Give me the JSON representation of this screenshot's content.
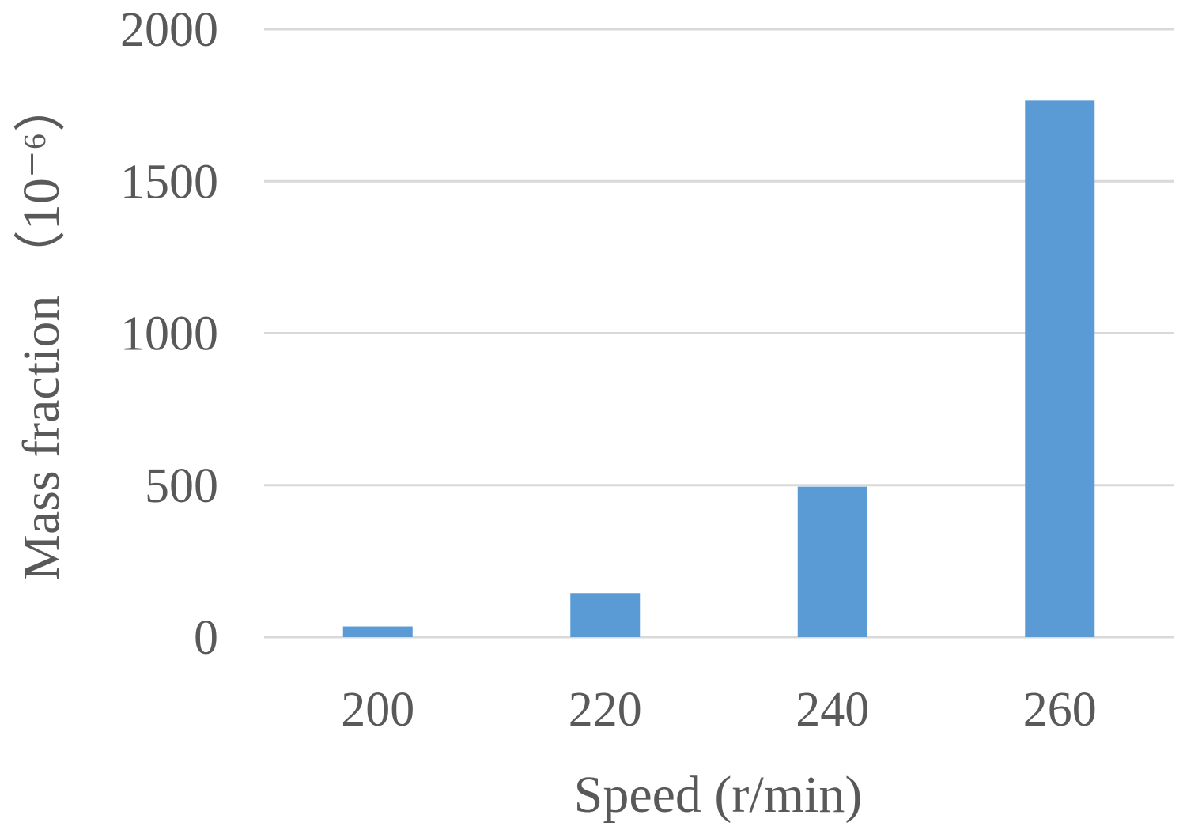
{
  "chart_data": {
    "type": "bar",
    "title": "",
    "xlabel": "Speed (r/min)",
    "ylabel": "Mass fraction （10⁻⁶）",
    "categories": [
      "200",
      "220",
      "240",
      "260"
    ],
    "values": [
      35,
      145,
      495,
      1765
    ],
    "ylim": [
      0,
      2000
    ],
    "yticks": [
      "0",
      "500",
      "1000",
      "1500",
      "2000"
    ],
    "grid": true,
    "legend": "none",
    "bar_color": "#5b9bd5",
    "grid_color": "#d9d9d9",
    "text_color": "#595959"
  }
}
